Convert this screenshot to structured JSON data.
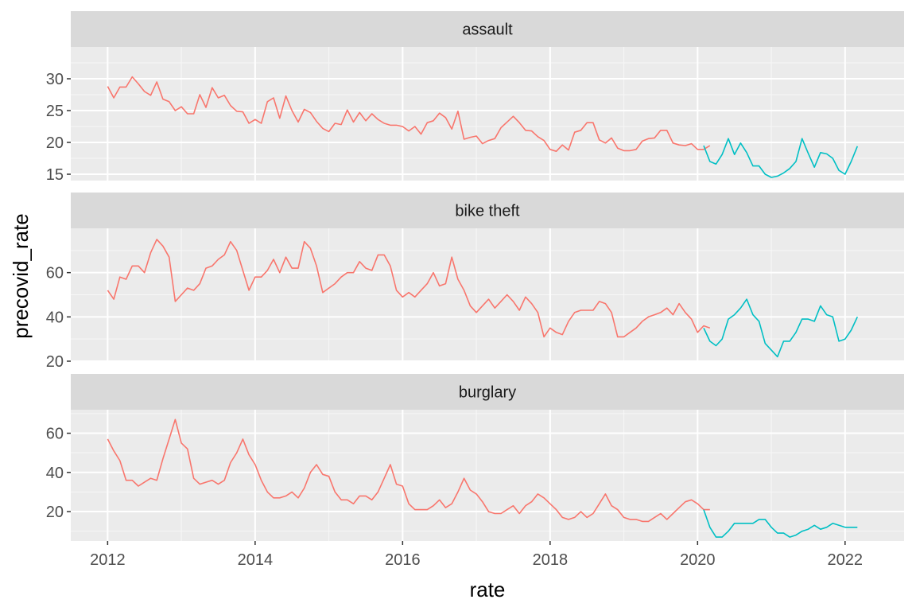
{
  "chart_data": {
    "type": "line",
    "layout": "facet_wrap (3 panels stacked vertically, free y, shared x)",
    "xlabel": "rate",
    "ylabel": "precovid_rate",
    "xlim": [
      2011.5,
      2022.8
    ],
    "x_ticks": [
      2012,
      2014,
      2016,
      2018,
      2020,
      2022
    ],
    "grid": true,
    "legend": "none",
    "series_colors": {
      "precovid": "#F8766D",
      "covid": "#00BFC4"
    },
    "panels": [
      {
        "label": "assault",
        "ylim": [
          14,
          35
        ],
        "y_ticks": [
          15,
          20,
          25,
          30
        ],
        "series": [
          {
            "color": "#F8766D",
            "x_start": 2012.0,
            "x_step": 0.0833333,
            "values": [
              28.8,
              27.0,
              28.7,
              28.7,
              30.3,
              29.2,
              28.0,
              27.4,
              29.5,
              26.8,
              26.4,
              25.0,
              25.6,
              24.5,
              24.5,
              27.5,
              25.5,
              28.6,
              27.0,
              27.4,
              25.8,
              24.9,
              24.8,
              23.0,
              23.6,
              23.0,
              26.4,
              27.0,
              23.8,
              27.3,
              25.0,
              23.2,
              25.2,
              24.7,
              23.3,
              22.2,
              21.7,
              23.0,
              22.8,
              25.1,
              23.2,
              24.7,
              23.4,
              24.5,
              23.6,
              23.0,
              22.7,
              22.7,
              22.5,
              21.8,
              22.5,
              21.3,
              23.1,
              23.4,
              24.6,
              23.9,
              22.1,
              24.9,
              20.5,
              20.8,
              21.0,
              19.8,
              20.3,
              20.6,
              22.3,
              23.2,
              24.1,
              23.1,
              21.9,
              21.8,
              20.9,
              20.3,
              18.9,
              18.6,
              19.6,
              18.8,
              21.6,
              21.9,
              23.1,
              23.1,
              20.4,
              19.9,
              20.7,
              19.1,
              18.7,
              18.7,
              18.9,
              20.2,
              20.6,
              20.7,
              21.9,
              21.9,
              19.9,
              19.6,
              19.5,
              19.8,
              18.9,
              18.9,
              19.5
            ]
          },
          {
            "color": "#00BFC4",
            "x_start": 2020.0833,
            "x_step": 0.0833333,
            "values": [
              19.5,
              17.0,
              16.6,
              18.1,
              20.6,
              18.1,
              19.9,
              18.4,
              16.3,
              16.3,
              15.0,
              14.5,
              14.7,
              15.2,
              15.9,
              17.0,
              20.6,
              18.3,
              16.1,
              18.4,
              18.2,
              17.5,
              15.6,
              15.0,
              17.0,
              19.4
            ]
          }
        ]
      },
      {
        "label": "bike theft",
        "ylim": [
          20,
          80
        ],
        "y_ticks": [
          20,
          40,
          60
        ],
        "series": [
          {
            "color": "#F8766D",
            "x_start": 2012.0,
            "x_step": 0.0833333,
            "values": [
              52,
              48,
              58,
              57,
              63,
              63,
              60,
              69,
              75,
              72,
              67,
              47,
              50,
              53,
              52,
              55,
              62,
              63,
              66,
              68,
              74,
              70,
              61,
              52,
              58,
              58,
              61,
              66,
              60,
              67,
              62,
              62,
              74,
              71,
              63,
              51,
              53,
              55,
              58,
              60,
              60,
              65,
              62,
              61,
              68,
              68,
              63,
              52,
              49,
              51,
              49,
              52,
              55,
              60,
              54,
              55,
              67,
              57,
              52,
              45,
              42,
              45,
              48,
              44,
              47,
              50,
              47,
              43,
              49,
              46,
              42,
              31,
              35,
              33,
              32,
              38,
              42,
              43,
              43,
              43,
              47,
              46,
              42,
              31,
              31,
              33,
              35,
              38,
              40,
              41,
              42,
              44,
              41,
              46,
              42,
              39,
              33,
              36,
              35
            ]
          },
          {
            "color": "#00BFC4",
            "x_start": 2020.0833,
            "x_step": 0.0833333,
            "values": [
              35,
              29,
              27,
              30,
              39,
              41,
              44,
              48,
              41,
              38,
              28,
              25,
              22,
              29,
              29,
              33,
              39,
              39,
              38,
              45,
              41,
              40,
              29,
              30,
              34,
              40
            ]
          }
        ]
      },
      {
        "label": "burglary",
        "ylim": [
          5,
          72
        ],
        "y_ticks": [
          20,
          40,
          60
        ],
        "series": [
          {
            "color": "#F8766D",
            "x_start": 2012.0,
            "x_step": 0.0833333,
            "values": [
              57,
              51,
              46,
              36,
              36,
              33,
              35,
              37,
              36,
              47,
              57,
              67,
              55,
              52,
              37,
              34,
              35,
              36,
              34,
              36,
              45,
              50,
              57,
              49,
              44,
              36,
              30,
              27,
              27,
              28,
              30,
              27,
              32,
              40,
              44,
              39,
              38,
              30,
              26,
              26,
              24,
              28,
              28,
              26,
              30,
              37,
              44,
              34,
              33,
              24,
              21,
              21,
              21,
              23,
              26,
              22,
              24,
              30,
              37,
              31,
              29,
              25,
              20,
              19,
              19,
              21,
              23,
              19,
              23,
              25,
              29,
              27,
              24,
              21,
              17,
              16,
              17,
              20,
              17,
              19,
              24,
              29,
              23,
              21,
              17,
              16,
              16,
              15,
              15,
              17,
              19,
              16,
              19,
              22,
              25,
              26,
              24,
              21,
              21
            ]
          },
          {
            "color": "#00BFC4",
            "x_start": 2020.0833,
            "x_step": 0.0833333,
            "values": [
              21,
              12,
              7,
              7,
              10,
              14,
              14,
              14,
              14,
              16,
              16,
              12,
              9,
              9,
              7,
              8,
              10,
              11,
              13,
              11,
              12,
              14,
              13,
              12,
              12,
              12
            ]
          }
        ]
      }
    ]
  }
}
